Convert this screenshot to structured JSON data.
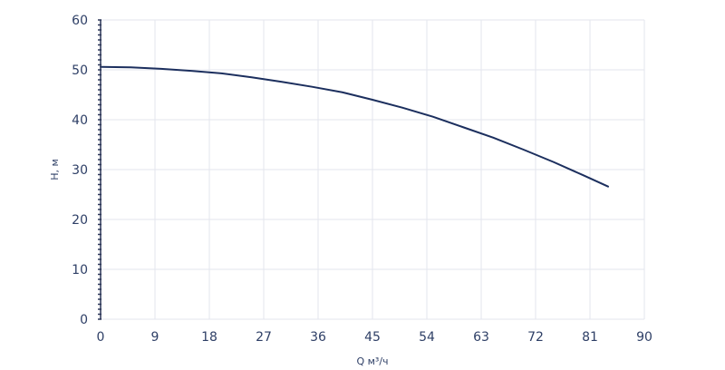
{
  "chart_data": {
    "type": "line",
    "xlabel": "Q м³/ч",
    "ylabel": "H, м",
    "xlim": [
      0,
      90
    ],
    "ylim": [
      0,
      60
    ],
    "xticks": [
      0,
      9,
      18,
      27,
      36,
      45,
      54,
      63,
      72,
      81,
      90
    ],
    "yticks": [
      0,
      10,
      20,
      30,
      40,
      50,
      60
    ],
    "grid": true,
    "series": [
      {
        "color": "#1c2f5e",
        "x": [
          0,
          5,
          10,
          15,
          20,
          25,
          30,
          35,
          40,
          45,
          50,
          55,
          60,
          65,
          70,
          75,
          80,
          84
        ],
        "y": [
          50.6,
          50.5,
          50.2,
          49.8,
          49.3,
          48.5,
          47.6,
          46.6,
          45.5,
          44.0,
          42.4,
          40.6,
          38.5,
          36.4,
          34.0,
          31.5,
          28.8,
          26.6
        ]
      }
    ]
  }
}
